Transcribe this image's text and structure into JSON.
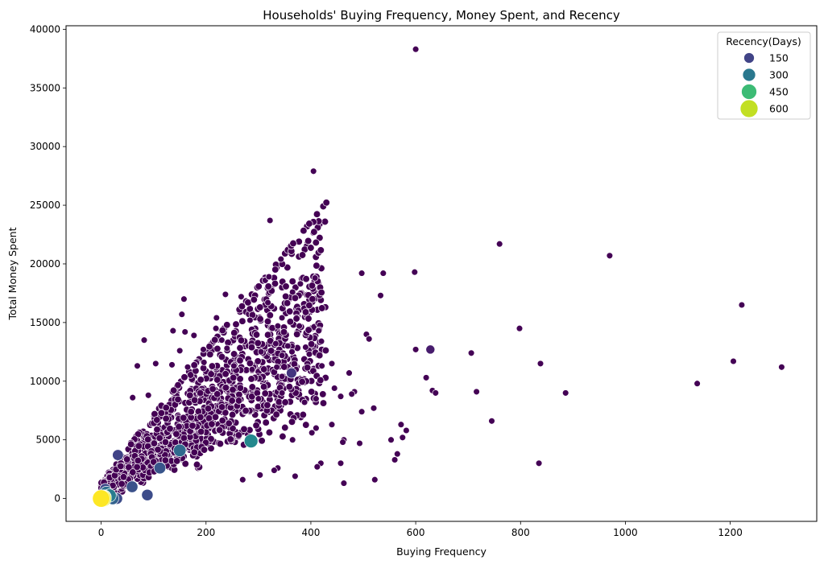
{
  "chart_data": {
    "type": "scatter",
    "title": "Households' Buying Frequency, Money Spent, and Recency",
    "xlabel": "Buying Frequency",
    "ylabel": "Total Money Spent",
    "xlim": [
      -67,
      1365
    ],
    "ylim": [
      -1950,
      40300
    ],
    "xticks": [
      0,
      200,
      400,
      600,
      800,
      1000,
      1200
    ],
    "yticks": [
      0,
      5000,
      10000,
      15000,
      20000,
      25000,
      30000,
      35000,
      40000
    ],
    "grid": false,
    "legend": {
      "title": "Recency(Days)",
      "placement": "top-right",
      "entries": [
        {
          "label": "150",
          "value": 150,
          "color": "#414487"
        },
        {
          "label": "300",
          "value": 300,
          "color": "#2a788e"
        },
        {
          "label": "450",
          "value": 450,
          "color": "#3cbb75"
        },
        {
          "label": "600",
          "value": 600,
          "color": "#c2df23"
        }
      ]
    },
    "colors": {
      "low_recency": "#440154",
      "mid_recency": "#2a788e",
      "high_recency": "#fde725"
    },
    "points": [
      [
        600,
        38300,
        1
      ],
      [
        405,
        27900,
        1
      ],
      [
        322,
        23700,
        1
      ],
      [
        760,
        21700,
        1
      ],
      [
        970,
        20700,
        1
      ],
      [
        343,
        20400,
        1
      ],
      [
        497,
        19200,
        1
      ],
      [
        538,
        19200,
        1
      ],
      [
        598,
        19300,
        1
      ],
      [
        313,
        18600,
        1
      ],
      [
        320,
        18900,
        1
      ],
      [
        408,
        18800,
        1
      ],
      [
        380,
        18300,
        1
      ],
      [
        365,
        17600,
        1
      ],
      [
        533,
        17300,
        1
      ],
      [
        237,
        17400,
        1
      ],
      [
        267,
        17200,
        1
      ],
      [
        158,
        17000,
        1
      ],
      [
        1222,
        16500,
        1
      ],
      [
        318,
        16700,
        1
      ],
      [
        154,
        15700,
        1
      ],
      [
        220,
        15400,
        1
      ],
      [
        284,
        15200,
        1
      ],
      [
        345,
        15400,
        1
      ],
      [
        798,
        14500,
        1
      ],
      [
        137,
        14300,
        1
      ],
      [
        160,
        14200,
        1
      ],
      [
        177,
        13900,
        1
      ],
      [
        219,
        14500,
        1
      ],
      [
        337,
        14700,
        1
      ],
      [
        378,
        14700,
        1
      ],
      [
        415,
        14300,
        1
      ],
      [
        506,
        14000,
        1
      ],
      [
        511,
        13600,
        1
      ],
      [
        82,
        13500,
        1
      ],
      [
        230,
        13500,
        1
      ],
      [
        333,
        13200,
        1
      ],
      [
        356,
        13000,
        1
      ],
      [
        420,
        13400,
        1
      ],
      [
        364,
        12500,
        1
      ],
      [
        390,
        12900,
        1
      ],
      [
        397,
        12300,
        1
      ],
      [
        600,
        12700,
        1
      ],
      [
        628,
        12700,
        50
      ],
      [
        706,
        12400,
        1
      ],
      [
        150,
        12600,
        1
      ],
      [
        195,
        12700,
        1
      ],
      [
        240,
        12800,
        1
      ],
      [
        305,
        12500,
        1
      ],
      [
        345,
        12200,
        1
      ],
      [
        838,
        11500,
        1
      ],
      [
        1206,
        11700,
        1
      ],
      [
        1298,
        11200,
        1
      ],
      [
        69,
        11300,
        1
      ],
      [
        104,
        11500,
        1
      ],
      [
        135,
        11400,
        1
      ],
      [
        165,
        11200,
        1
      ],
      [
        196,
        11600,
        1
      ],
      [
        253,
        11300,
        1
      ],
      [
        288,
        11000,
        1
      ],
      [
        335,
        11200,
        1
      ],
      [
        372,
        11000,
        1
      ],
      [
        421,
        11300,
        1
      ],
      [
        440,
        11500,
        1
      ],
      [
        473,
        10700,
        1
      ],
      [
        363,
        10700,
        100
      ],
      [
        345,
        10400,
        1
      ],
      [
        620,
        10300,
        1
      ],
      [
        1137,
        9800,
        1
      ],
      [
        632,
        9200,
        1
      ],
      [
        638,
        9000,
        1
      ],
      [
        716,
        9100,
        1
      ],
      [
        886,
        9000,
        1
      ],
      [
        445,
        9400,
        1
      ],
      [
        483,
        9100,
        1
      ],
      [
        478,
        8900,
        1
      ],
      [
        520,
        7700,
        1
      ],
      [
        497,
        7400,
        1
      ],
      [
        457,
        8700,
        1
      ],
      [
        410,
        8500,
        1
      ],
      [
        388,
        8200,
        1
      ],
      [
        345,
        9000,
        1
      ],
      [
        60,
        8600,
        1
      ],
      [
        90,
        8800,
        1
      ],
      [
        300,
        8500,
        1
      ],
      [
        745,
        6600,
        1
      ],
      [
        572,
        6300,
        1
      ],
      [
        582,
        5800,
        1
      ],
      [
        575,
        5200,
        1
      ],
      [
        553,
        5000,
        1
      ],
      [
        493,
        4700,
        1
      ],
      [
        463,
        5000,
        1
      ],
      [
        461,
        4800,
        1
      ],
      [
        440,
        6300,
        1
      ],
      [
        410,
        6000,
        1
      ],
      [
        402,
        5600,
        1
      ],
      [
        365,
        5000,
        1
      ],
      [
        565,
        3800,
        1
      ],
      [
        560,
        3300,
        1
      ],
      [
        457,
        3000,
        1
      ],
      [
        419,
        3000,
        1
      ],
      [
        412,
        2700,
        1
      ],
      [
        370,
        1900,
        1
      ],
      [
        337,
        2600,
        1
      ],
      [
        330,
        2400,
        1
      ],
      [
        835,
        3000,
        1
      ],
      [
        522,
        1600,
        1
      ],
      [
        463,
        1300,
        1
      ],
      [
        303,
        2000,
        1
      ],
      [
        270,
        1600,
        1
      ],
      [
        286,
        4900,
        300
      ],
      [
        150,
        4100,
        220
      ],
      [
        112,
        2600,
        170
      ],
      [
        59,
        1000,
        160
      ],
      [
        88,
        300,
        150
      ],
      [
        32,
        3700,
        130
      ],
      [
        30,
        0,
        150
      ],
      [
        10,
        500,
        230
      ],
      [
        16,
        250,
        270
      ],
      [
        5,
        100,
        400
      ],
      [
        0,
        0,
        640
      ],
      [
        3,
        0,
        600
      ],
      [
        8,
        800,
        140
      ],
      [
        22,
        0,
        200
      ]
    ],
    "cluster_note": "Dense cloud of additional low-recency households between x≈0–420, y≈0–15000"
  }
}
